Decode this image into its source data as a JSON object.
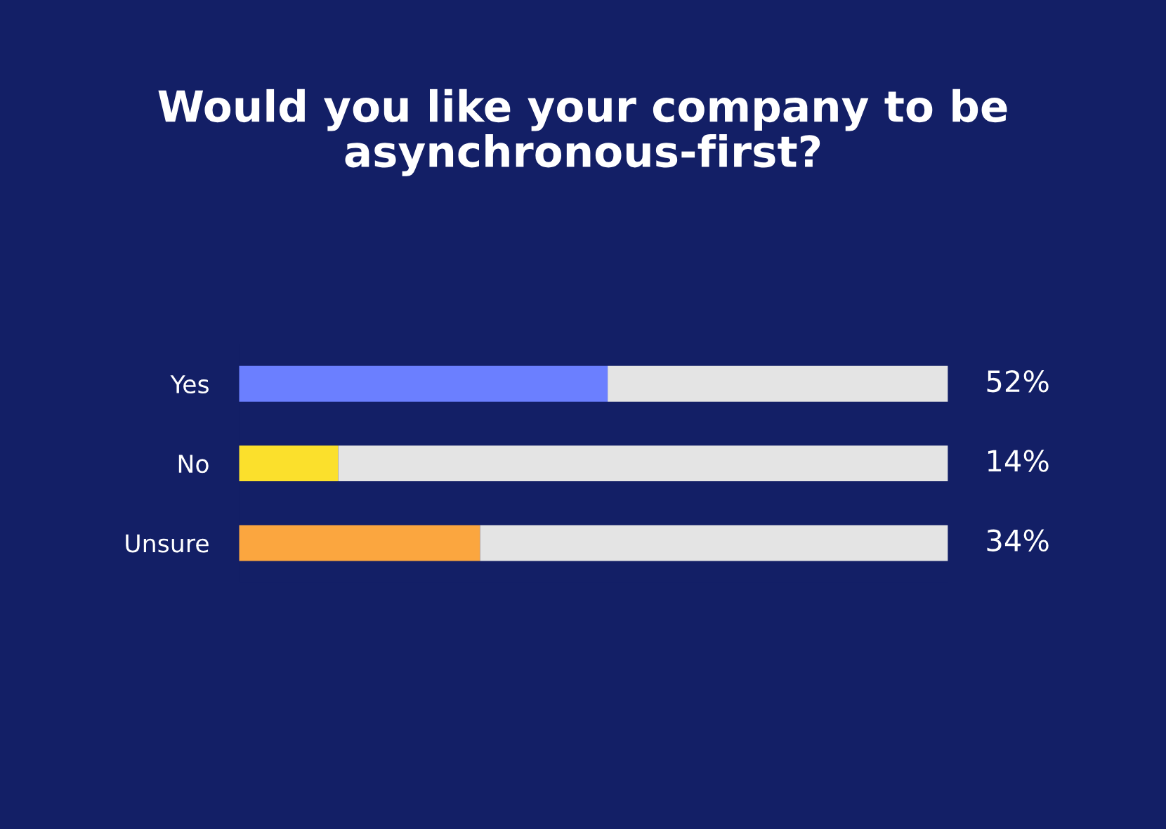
{
  "chart_data": {
    "type": "bar",
    "orientation": "horizontal",
    "stacked": true,
    "title": "Would you like your company to be\nasynchronous-first?",
    "categories": [
      "Yes",
      "No",
      "Unsure"
    ],
    "series": [
      {
        "colors": [
          "#6b7fff",
          "#fbe02c",
          "#fba63f"
        ],
        "values": [
          52,
          14,
          34
        ],
        "value_labels": [
          "52%",
          "14%",
          "34%"
        ]
      },
      {
        "color": "#e4e4e4",
        "values": [
          48,
          86,
          66
        ]
      }
    ],
    "xlim": [
      0,
      100
    ],
    "tick_labels": "y",
    "grid": false,
    "legend": false
  }
}
